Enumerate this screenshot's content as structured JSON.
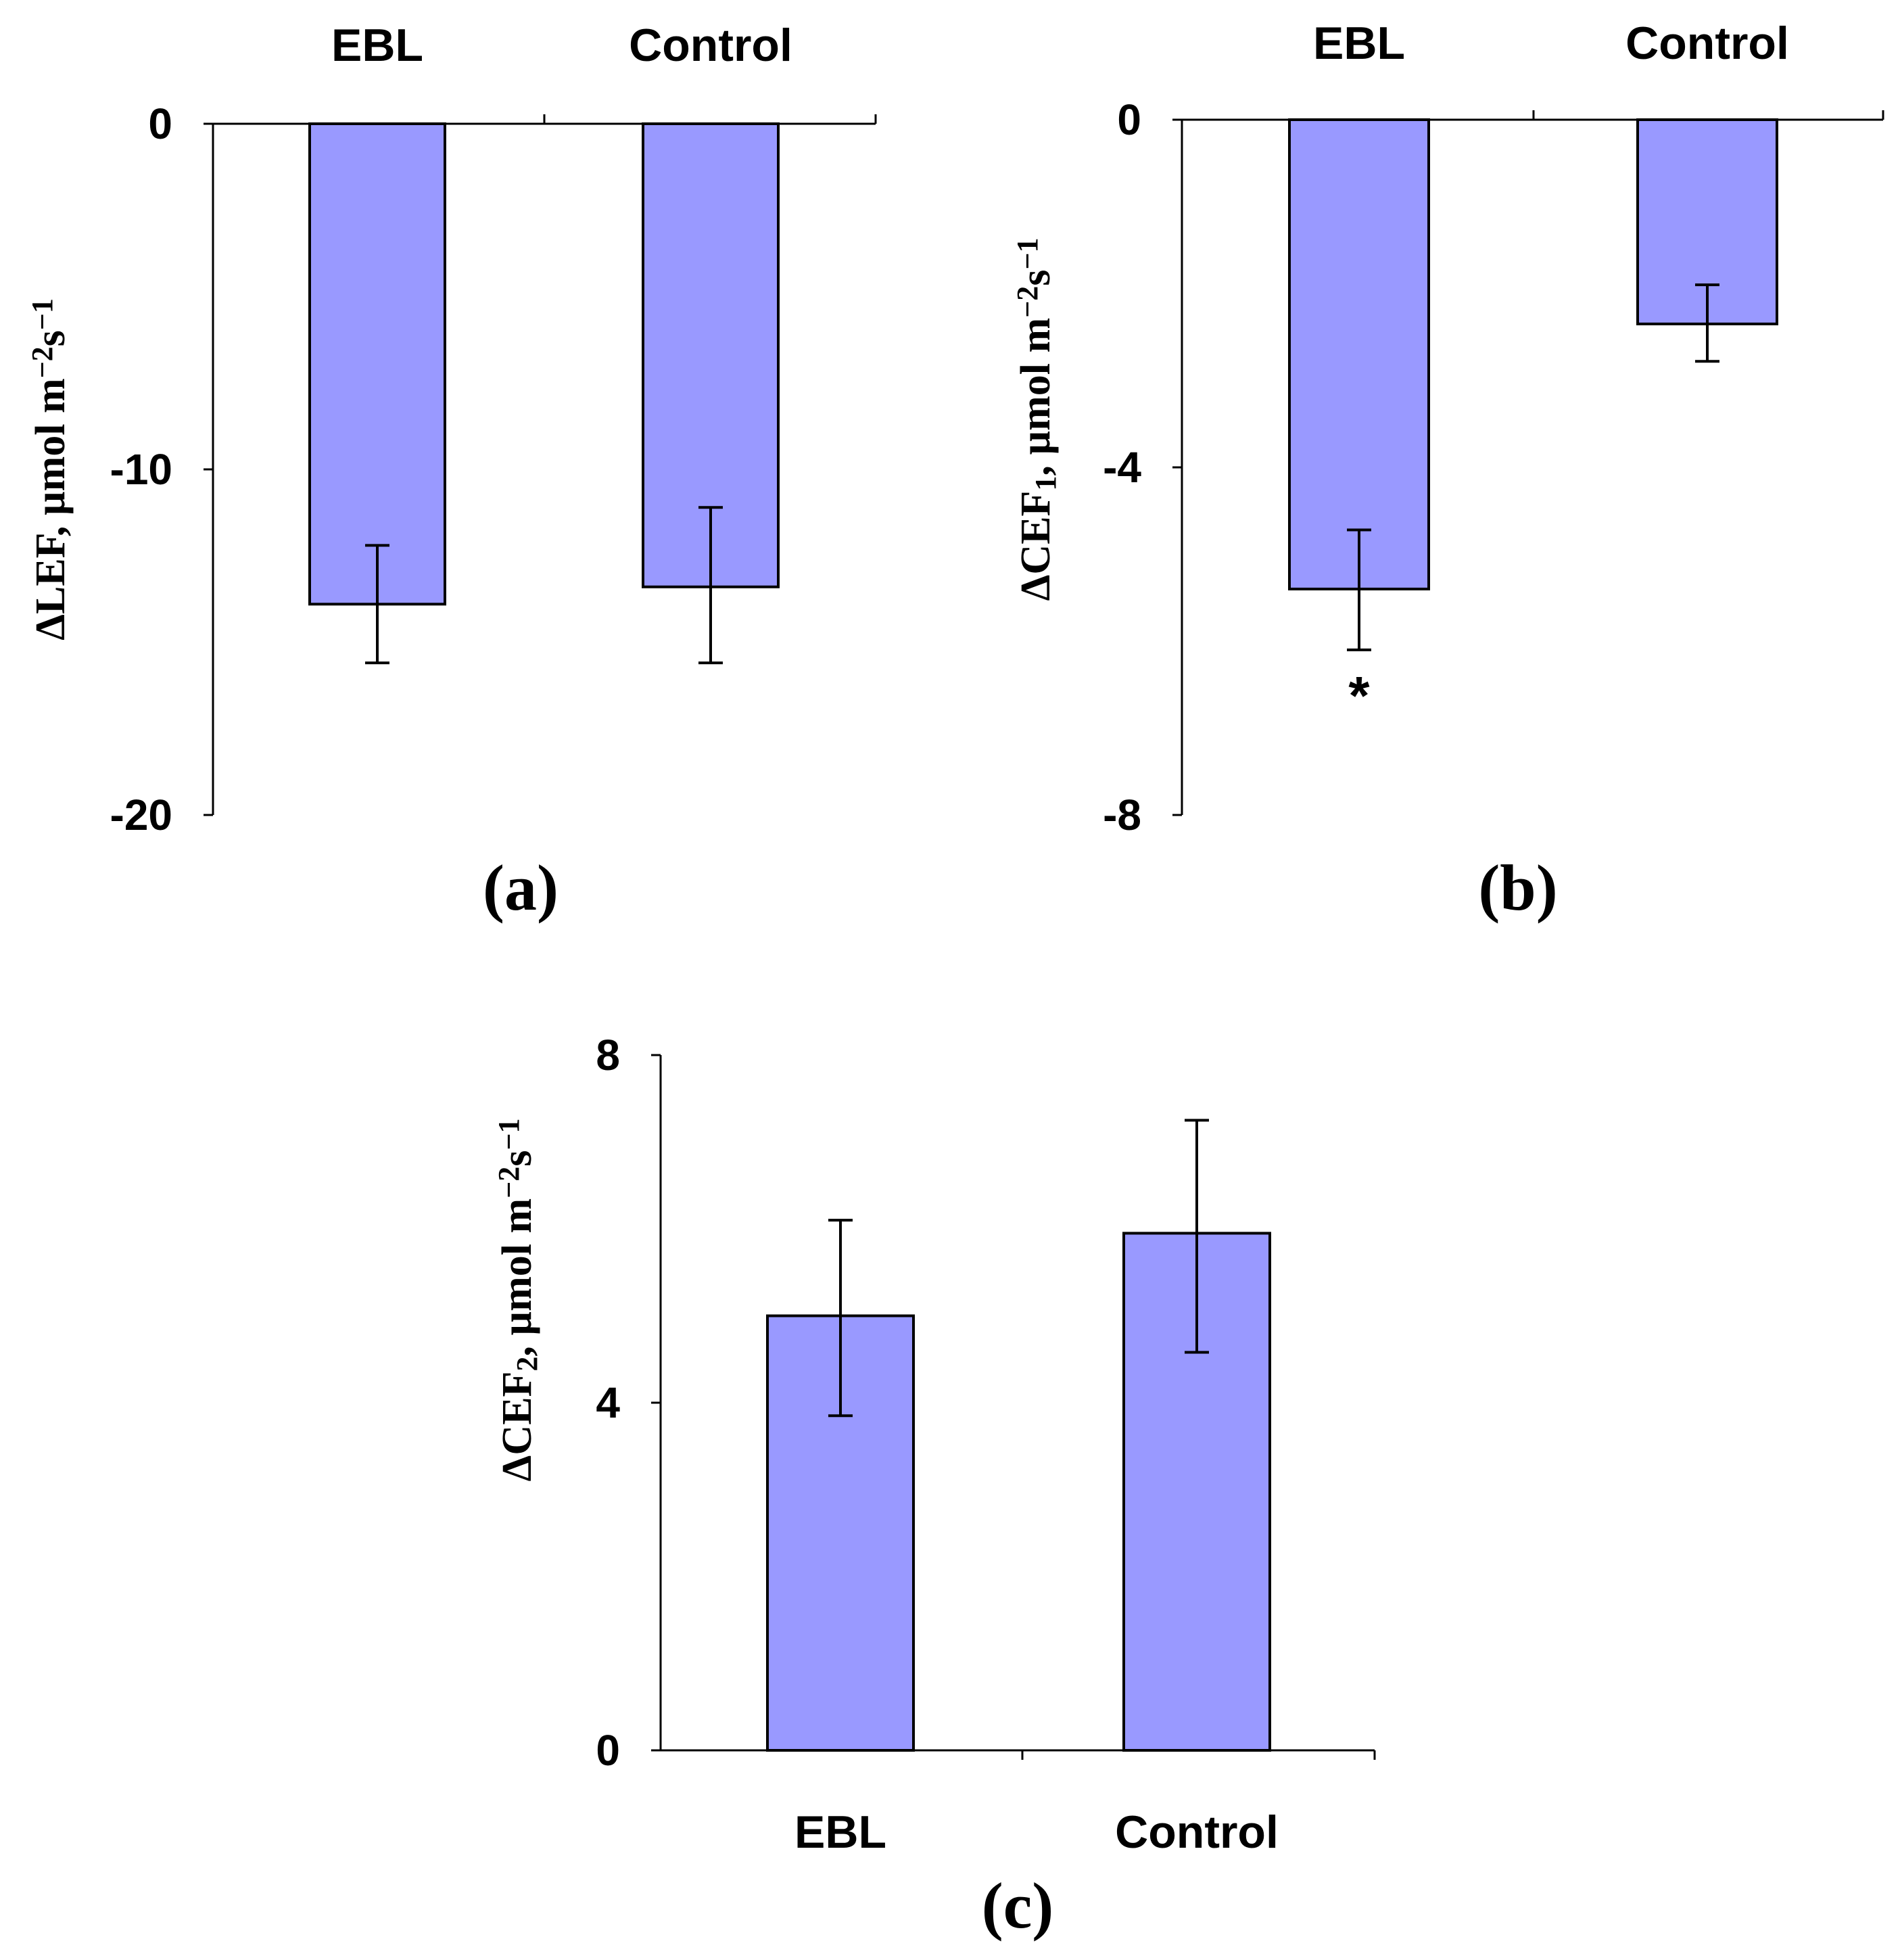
{
  "colors": {
    "bar_fill": "#9999ff",
    "axis": "#000000",
    "background": "#ffffff"
  },
  "chart_data": [
    {
      "id": "a",
      "type": "bar",
      "panel_label": "(a)",
      "categories": [
        "EBL",
        "Control"
      ],
      "values": [
        -13.9,
        -13.4
      ],
      "errors": [
        1.7,
        2.2
      ],
      "error_upper": [
        1.7,
        2.3
      ],
      "error_lower": [
        1.7,
        2.2
      ],
      "ylabel_prefix": "ΔLEF, µmol m",
      "ylabel_sup1": "−2",
      "ylabel_mid": "s",
      "ylabel_sup2": "−1",
      "ylim": [
        -20,
        0
      ],
      "yticks": [
        "0",
        "-10",
        "-20"
      ],
      "ytick_values": [
        0,
        -10,
        -20
      ],
      "category_labels_position": "top",
      "annotations": []
    },
    {
      "id": "b",
      "type": "bar",
      "panel_label": "(b)",
      "categories": [
        "EBL",
        "Control"
      ],
      "values": [
        -5.4,
        -2.35
      ],
      "error_upper": [
        0.68,
        0.45
      ],
      "error_lower": [
        0.7,
        0.43
      ],
      "ylabel_prefix": "ΔCEF",
      "ylabel_sub": "1",
      "ylabel_rest": ", µmol m",
      "ylabel_sup1": "−2",
      "ylabel_mid": "s",
      "ylabel_sup2": "−1",
      "ylim": [
        -8,
        0
      ],
      "yticks": [
        "0",
        "-4",
        "-8"
      ],
      "ytick_values": [
        0,
        -4,
        -8
      ],
      "category_labels_position": "top",
      "annotations": [
        {
          "category": "EBL",
          "text": "*"
        }
      ]
    },
    {
      "id": "c",
      "type": "bar",
      "panel_label": "(c)",
      "categories": [
        "EBL",
        "Control"
      ],
      "values": [
        5.0,
        5.95
      ],
      "error_upper": [
        1.1,
        1.3
      ],
      "error_lower": [
        1.15,
        1.37
      ],
      "ylabel_prefix": "ΔCEF",
      "ylabel_sub": "2",
      "ylabel_rest": ", µmol m",
      "ylabel_sup1": "−2",
      "ylabel_mid": "s",
      "ylabel_sup2": "−1",
      "ylim": [
        0,
        8
      ],
      "yticks": [
        "8",
        "4",
        "0"
      ],
      "ytick_values": [
        8,
        4,
        0
      ],
      "category_labels_position": "bottom",
      "annotations": []
    }
  ]
}
